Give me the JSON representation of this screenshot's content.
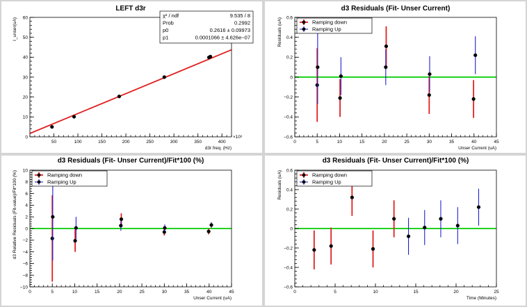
{
  "colors": {
    "fit_line": "#e02020",
    "ramp_down": "#e02020",
    "ramp_up": "#2020d0",
    "zero_line": "#00cc00",
    "marker": "#000000"
  },
  "chart_data": [
    {
      "id": "p1",
      "type": "scatter",
      "title": "LEFT d3r",
      "xlabel": "d3r freq. (Hz)",
      "ylabel": "I_unser(uA)",
      "xlim": [
        0,
        420
      ],
      "ylim": [
        0,
        60
      ],
      "xticks": [
        50,
        100,
        150,
        200,
        250,
        300,
        350,
        400
      ],
      "yticks": [
        0,
        10,
        20,
        30,
        40,
        50,
        60
      ],
      "xticklabels": [
        "50",
        "100",
        "150",
        "200",
        "250",
        "300",
        "350",
        "400"
      ],
      "yticklabels": [
        "0",
        "10",
        "20",
        "30",
        "40",
        "50",
        "60"
      ],
      "x_exponent": "×10³",
      "grid": false,
      "fit_line": {
        "x": [
          0,
          420
        ],
        "y": [
          1.7,
          43.7
        ]
      },
      "points": {
        "x": [
          46,
          92,
          186,
          280,
          373,
          376
        ],
        "y": [
          5.0,
          10.1,
          20.3,
          30.0,
          39.9,
          40.3
        ]
      },
      "stats": [
        {
          "name": "χ² / ndf",
          "value": "9.535 / 8"
        },
        {
          "name": "Prob",
          "value": "0.2992"
        },
        {
          "name": "p0",
          "value": "0.2616 ± 0.09973"
        },
        {
          "name": "p1",
          "value": "0.0001066 ± 4.626e−07"
        }
      ]
    },
    {
      "id": "p2",
      "type": "scatter",
      "title": "d3 Residuals (Fit- Unser Current)",
      "xlabel": "Unser Current (uA)",
      "ylabel": "Residuals (uA)",
      "xlim": [
        0,
        45
      ],
      "ylim": [
        -0.6,
        0.6
      ],
      "xticks": [
        0,
        5,
        10,
        15,
        20,
        25,
        30,
        35,
        40,
        45
      ],
      "yticks": [
        -0.6,
        -0.4,
        -0.2,
        0,
        0.2,
        0.4,
        0.6
      ],
      "xticklabels": [
        "0",
        "5",
        "10",
        "15",
        "20",
        "25",
        "30",
        "35",
        "40",
        "45"
      ],
      "yticklabels": [
        "−0.6",
        "−0.4",
        "−0.2",
        "0",
        "0.2",
        "0.4",
        "0.6"
      ],
      "zero_line": true,
      "legend": [
        "Ramping down",
        "Ramping Up"
      ],
      "legend_position": "top-left",
      "series": [
        {
          "name": "Ramping down",
          "color": "ramp_down",
          "x": [
            5.0,
            10.1,
            20.4,
            30.0,
            39.9
          ],
          "y": [
            -0.08,
            -0.21,
            0.31,
            -0.18,
            -0.22
          ],
          "err": [
            0.37,
            0.19,
            0.2,
            0.19,
            0.19
          ]
        },
        {
          "name": "Ramping Up",
          "color": "ramp_up",
          "x": [
            5.1,
            10.3,
            20.3,
            30.1,
            40.3
          ],
          "y": [
            0.1,
            0.01,
            0.1,
            0.03,
            0.22
          ],
          "err": [
            0.37,
            0.19,
            0.18,
            0.18,
            0.19
          ]
        }
      ]
    },
    {
      "id": "p3",
      "type": "scatter",
      "title": "d3 Residuals (Fit- Unser Current)/Fit*100 (%)",
      "xlabel": "Unser Current (uA)",
      "ylabel": "d3 Relative Residuals (Fit-value)/Fit*100 (%)",
      "xlim": [
        0,
        45
      ],
      "ylim": [
        -10,
        10
      ],
      "xticks": [
        0,
        5,
        10,
        15,
        20,
        25,
        30,
        35,
        40,
        45
      ],
      "yticks": [
        -10,
        -8,
        -6,
        -4,
        -2,
        0,
        2,
        4,
        6,
        8,
        10
      ],
      "xticklabels": [
        "0",
        "5",
        "10",
        "15",
        "20",
        "25",
        "30",
        "35",
        "40",
        "45"
      ],
      "yticklabels": [
        "−10",
        "−8",
        "−6",
        "−4",
        "−2",
        "0",
        "2",
        "4",
        "6",
        "8",
        "10"
      ],
      "zero_line": true,
      "legend": [
        "Ramping down",
        "Ramping Up"
      ],
      "legend_position": "top-left",
      "series": [
        {
          "name": "Ramping down",
          "color": "ramp_down",
          "x": [
            5.0,
            10.1,
            20.4,
            30.0,
            39.9
          ],
          "y": [
            -1.7,
            -2.1,
            1.6,
            -0.6,
            -0.5
          ],
          "err": [
            7.4,
            1.9,
            1.0,
            0.6,
            0.5
          ]
        },
        {
          "name": "Ramping Up",
          "color": "ramp_up",
          "x": [
            5.1,
            10.3,
            20.3,
            30.1,
            40.5
          ],
          "y": [
            2.0,
            0.1,
            0.5,
            0.1,
            0.6
          ],
          "err": [
            7.5,
            1.9,
            0.9,
            0.6,
            0.5
          ]
        }
      ]
    },
    {
      "id": "p4",
      "type": "scatter",
      "title": "d3 Residuals (Fit- Unser Current)/Fit*100 (%)",
      "xlabel": "Time (Minutes)",
      "ylabel": "Residuals (uA)",
      "xlim": [
        0,
        25
      ],
      "ylim": [
        -0.6,
        0.6
      ],
      "xticks": [
        0,
        5,
        10,
        15,
        20,
        25
      ],
      "yticks": [
        -0.6,
        -0.4,
        -0.2,
        0,
        0.2,
        0.4,
        0.6
      ],
      "xticklabels": [
        "0",
        "5",
        "10",
        "15",
        "20",
        "25"
      ],
      "yticklabels": [
        "−0.6",
        "−0.4",
        "−0.2",
        "0",
        "0.2",
        "0.4",
        "0.6"
      ],
      "zero_line": true,
      "legend": [
        "Ramping down",
        "Ramping Up"
      ],
      "legend_position": "top-left",
      "series": [
        {
          "name": "Ramping down",
          "color": "ramp_down",
          "x": [
            2.4,
            4.5,
            7.1,
            9.7,
            12.3
          ],
          "y": [
            -0.22,
            -0.18,
            0.32,
            -0.21,
            0.1
          ],
          "err": [
            0.2,
            0.19,
            0.19,
            0.19,
            0.19
          ]
        },
        {
          "name": "Ramping Up",
          "color": "ramp_up",
          "x": [
            14.1,
            16.1,
            18.1,
            20.2,
            22.8
          ],
          "y": [
            -0.08,
            0.01,
            0.1,
            0.03,
            0.22
          ],
          "err": [
            0.19,
            0.18,
            0.19,
            0.19,
            0.19
          ]
        }
      ]
    }
  ]
}
